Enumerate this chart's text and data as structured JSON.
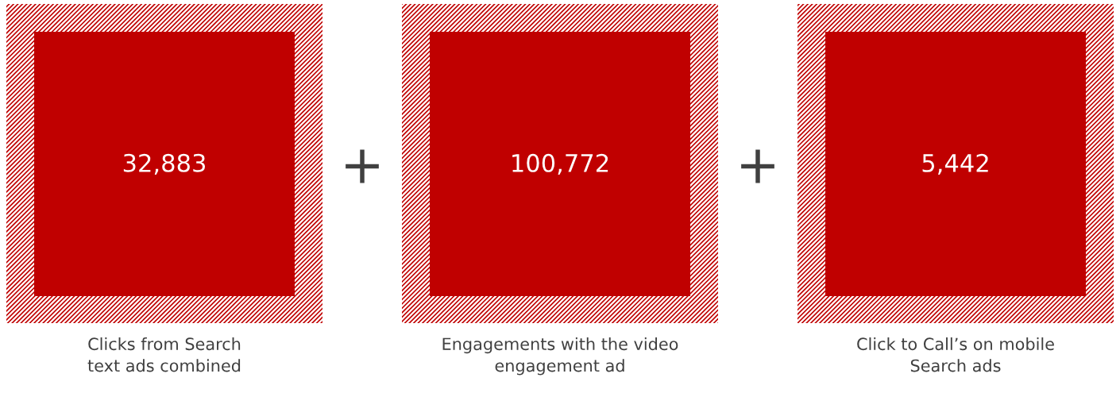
{
  "chart_data": {
    "type": "other",
    "categories": [
      "Clicks from Search\ntext ads combined",
      "Engagements with the video\nengagement ad",
      "Click to Call’s on mobile\nSearch ads"
    ],
    "colors": [
      "#c00000",
      "#c00000",
      "#c00000"
    ],
    "values": [
      32883,
      100772,
      5442
    ],
    "data_labels": true,
    "value_labels": [
      "32,883",
      "100,772",
      "5,442"
    ],
    "annotations": [
      "+",
      "+"
    ]
  }
}
